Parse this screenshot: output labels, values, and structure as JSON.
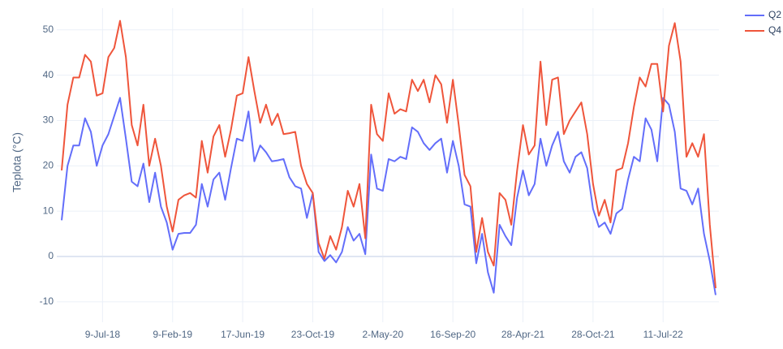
{
  "chart_data": {
    "type": "line",
    "ylabel": "Teplota (°C)",
    "categories": [
      null,
      null,
      null,
      null,
      null,
      null,
      null,
      "9-Jul-18",
      null,
      null,
      null,
      null,
      null,
      null,
      null,
      null,
      null,
      null,
      null,
      "9-Feb-19",
      null,
      null,
      null,
      null,
      null,
      null,
      null,
      null,
      null,
      null,
      null,
      "17-Jun-19",
      null,
      null,
      null,
      null,
      null,
      null,
      null,
      null,
      null,
      null,
      null,
      "23-Oct-19",
      null,
      null,
      null,
      null,
      null,
      null,
      null,
      null,
      null,
      null,
      null,
      "2-May-20",
      null,
      null,
      null,
      null,
      null,
      null,
      null,
      null,
      null,
      null,
      null,
      "16-Sep-20",
      null,
      null,
      null,
      null,
      null,
      null,
      null,
      null,
      null,
      null,
      null,
      "28-Apr-21",
      null,
      null,
      null,
      null,
      null,
      null,
      null,
      null,
      null,
      null,
      null,
      "28-Oct-21",
      null,
      null,
      null,
      null,
      null,
      null,
      null,
      null,
      null,
      null,
      null,
      "11-Jul-22",
      null,
      null,
      null,
      null,
      null,
      null,
      null,
      null,
      null
    ],
    "series": [
      {
        "name": "Q2",
        "color": "#636efa",
        "values": [
          8,
          20,
          24.5,
          24.5,
          30.5,
          27.5,
          20,
          24.5,
          27,
          31,
          35,
          26,
          16.5,
          15.5,
          20.5,
          12,
          18.5,
          11,
          7.5,
          1.5,
          5,
          5.2,
          5.2,
          7,
          16,
          11,
          17,
          18.5,
          12.5,
          19.5,
          26,
          25.5,
          32,
          21,
          24.5,
          23,
          21,
          21.2,
          21.5,
          17.5,
          15.5,
          15,
          8.5,
          14,
          1,
          -1,
          0.3,
          -1.3,
          1,
          6.5,
          3.5,
          5,
          0.5,
          22.5,
          15,
          14.5,
          21.5,
          21,
          22,
          21.5,
          28.5,
          27.5,
          25,
          23.5,
          25,
          26,
          18.5,
          25.5,
          20,
          11.5,
          11,
          -1.5,
          5,
          -3.5,
          -8,
          7,
          4.5,
          2.5,
          13,
          19,
          13.5,
          16,
          26,
          20,
          24.5,
          27.5,
          21,
          18.5,
          22,
          23,
          19.5,
          10.5,
          6.5,
          7.5,
          5,
          9.5,
          10.5,
          17,
          22,
          21,
          30.5,
          28,
          21,
          35,
          33.5,
          27.5,
          15,
          14.5,
          11.5,
          15,
          5,
          -1,
          -8.5
        ]
      },
      {
        "name": "Q4",
        "color": "#EF553B",
        "values": [
          19,
          33.5,
          39.5,
          39.5,
          44.5,
          43,
          35.5,
          36,
          44,
          46,
          52,
          44,
          29,
          24.5,
          33.5,
          20,
          26,
          20,
          11,
          5.5,
          12.5,
          13.5,
          14,
          13,
          25.5,
          18.5,
          26.5,
          29,
          22,
          28,
          35.5,
          36,
          44,
          36.5,
          29.5,
          33.5,
          29,
          31.5,
          27,
          27.2,
          27.5,
          20,
          16,
          14,
          3,
          -0.5,
          4.5,
          1.5,
          6.5,
          14.5,
          11,
          16,
          4,
          33.5,
          27,
          25.5,
          36,
          31.5,
          32.5,
          32,
          39,
          36.5,
          39,
          34,
          40,
          38,
          29.5,
          39,
          29,
          18,
          15.5,
          1,
          8.5,
          1,
          -2,
          14,
          12.5,
          7,
          19,
          29,
          22.5,
          24.5,
          43,
          29,
          39,
          39.5,
          27,
          30,
          32,
          34,
          27,
          16,
          9,
          12.5,
          7.5,
          19,
          19.5,
          25,
          33,
          39.5,
          37.5,
          42.5,
          42.5,
          32,
          46.5,
          51.5,
          43,
          22,
          25,
          22,
          27,
          7,
          -7
        ]
      }
    ],
    "ylim": [
      -14.5,
      54.8
    ],
    "yticks": [
      -10,
      0,
      10,
      20,
      30,
      40,
      50
    ],
    "grid": true,
    "legend": "top-right"
  }
}
